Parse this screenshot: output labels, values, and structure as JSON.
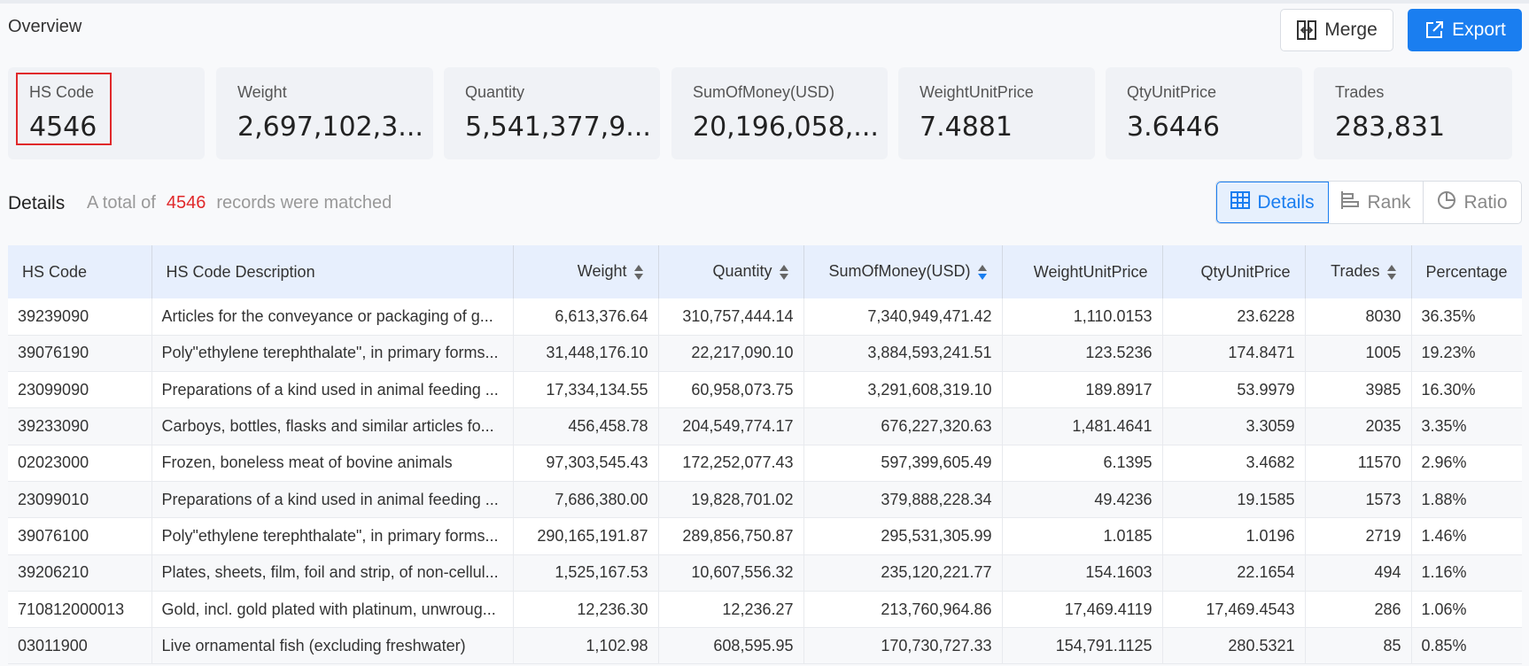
{
  "header": {
    "title": "Overview",
    "merge_label": "Merge",
    "export_label": "Export"
  },
  "summary_cards": [
    {
      "label": "HS Code",
      "value": "4546"
    },
    {
      "label": "Weight",
      "value": "2,697,102,3..."
    },
    {
      "label": "Quantity",
      "value": "5,541,377,9..."
    },
    {
      "label": "SumOfMoney(USD)",
      "value": "20,196,058,..."
    },
    {
      "label": "WeightUnitPrice",
      "value": "7.4881"
    },
    {
      "label": "QtyUnitPrice",
      "value": "3.6446"
    },
    {
      "label": "Trades",
      "value": "283,831"
    }
  ],
  "details": {
    "title": "Details",
    "prefix": "A total of",
    "count": "4546",
    "suffix": "records were matched",
    "views": [
      "Details",
      "Rank",
      "Ratio"
    ],
    "active_view": "Details"
  },
  "table": {
    "columns": [
      "HS Code",
      "HS Code Description",
      "Weight",
      "Quantity",
      "SumOfMoney(USD)",
      "WeightUnitPrice",
      "QtyUnitPrice",
      "Trades",
      "Percentage"
    ],
    "sort_column": "SumOfMoney(USD)",
    "sort_direction": "desc",
    "rows": [
      [
        "39239090",
        "Articles for the conveyance or packaging of g...",
        "6,613,376.64",
        "310,757,444.14",
        "7,340,949,471.42",
        "1,110.0153",
        "23.6228",
        "8030",
        "36.35%"
      ],
      [
        "39076190",
        "Poly\"ethylene terephthalate\", in primary forms...",
        "31,448,176.10",
        "22,217,090.10",
        "3,884,593,241.51",
        "123.5236",
        "174.8471",
        "1005",
        "19.23%"
      ],
      [
        "23099090",
        "Preparations of a kind used in animal feeding ...",
        "17,334,134.55",
        "60,958,073.75",
        "3,291,608,319.10",
        "189.8917",
        "53.9979",
        "3985",
        "16.30%"
      ],
      [
        "39233090",
        "Carboys, bottles, flasks and similar articles fo...",
        "456,458.78",
        "204,549,774.17",
        "676,227,320.63",
        "1,481.4641",
        "3.3059",
        "2035",
        "3.35%"
      ],
      [
        "02023000",
        "Frozen, boneless meat of bovine animals",
        "97,303,545.43",
        "172,252,077.43",
        "597,399,605.49",
        "6.1395",
        "3.4682",
        "11570",
        "2.96%"
      ],
      [
        "23099010",
        "Preparations of a kind used in animal feeding ...",
        "7,686,380.00",
        "19,828,701.02",
        "379,888,228.34",
        "49.4236",
        "19.1585",
        "1573",
        "1.88%"
      ],
      [
        "39076100",
        "Poly\"ethylene terephthalate\", in primary forms...",
        "290,165,191.87",
        "289,856,750.87",
        "295,531,305.99",
        "1.0185",
        "1.0196",
        "2719",
        "1.46%"
      ],
      [
        "39206210",
        "Plates, sheets, film, foil and strip, of non-cellul...",
        "1,525,167.53",
        "10,607,556.32",
        "235,120,221.77",
        "154.1603",
        "22.1654",
        "494",
        "1.16%"
      ],
      [
        "710812000013",
        "Gold, incl. gold plated with platinum, unwroug...",
        "12,236.30",
        "12,236.27",
        "213,760,964.86",
        "17,469.4119",
        "17,469.4543",
        "286",
        "1.06%"
      ],
      [
        "03011900",
        "Live ornamental fish (excluding freshwater)",
        "1,102.98",
        "608,595.95",
        "170,730,727.33",
        "154,791.1125",
        "280.5321",
        "85",
        "0.85%"
      ]
    ]
  },
  "colors": {
    "accent": "#1a7ef0",
    "highlight_red": "#e0282a",
    "header_bg": "#e7effd"
  }
}
